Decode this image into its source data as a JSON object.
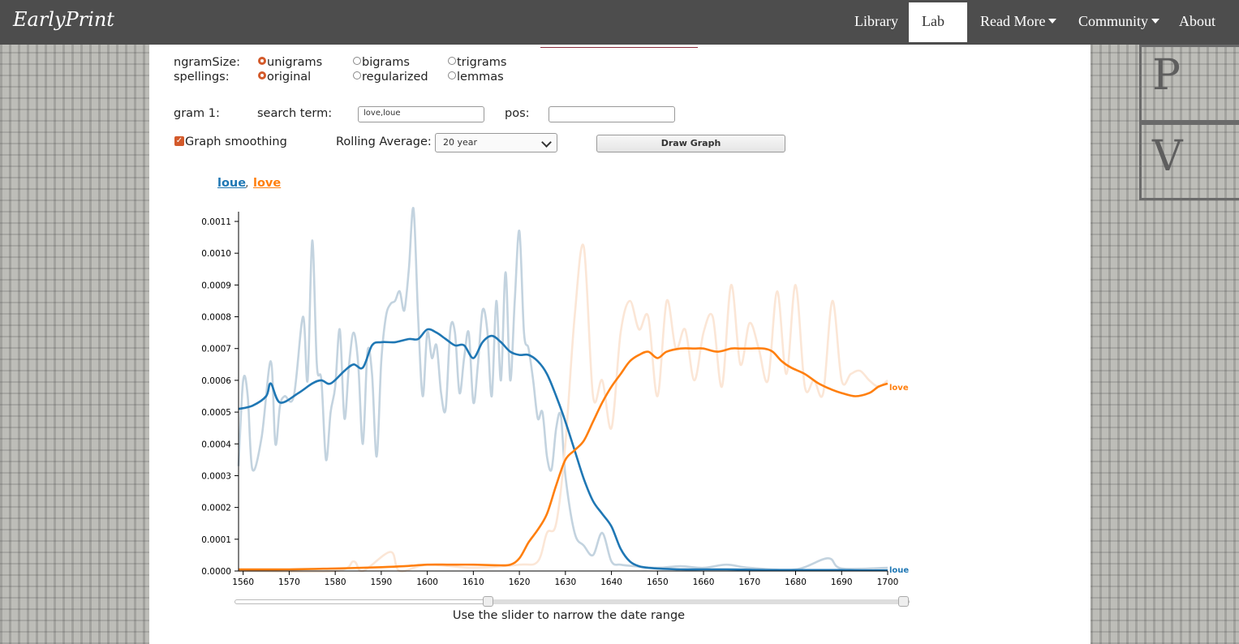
{
  "navbar": {
    "brand": "EarlyPrint",
    "items": [
      {
        "label": "Library",
        "dropdown": false,
        "active": false
      },
      {
        "label": "Lab",
        "dropdown": true,
        "active": true
      },
      {
        "label": "Read More",
        "dropdown": true,
        "active": false
      },
      {
        "label": "Community",
        "dropdown": true,
        "active": false
      },
      {
        "label": "About",
        "dropdown": false,
        "active": false
      }
    ]
  },
  "form": {
    "ngram_size_label": "ngramSize:",
    "ngram_options": [
      "unigrams",
      "bigrams",
      "trigrams"
    ],
    "ngram_selected": "unigrams",
    "spellings_label": "spellings:",
    "spelling_options": [
      "original",
      "regularized",
      "lemmas"
    ],
    "spelling_selected": "original",
    "gram_label": "gram 1:",
    "search_term_label": "search term:",
    "search_term_value": "love,loue",
    "pos_label": "pos:",
    "pos_value": "",
    "smoothing_label": "Graph smoothing",
    "smoothing_checked": true,
    "rolling_label": "Rolling Average:",
    "rolling_value": "20 year",
    "draw_button": "Draw Graph"
  },
  "legend": {
    "loue": "loue",
    "separator": ",",
    "love": "love"
  },
  "slider_caption": "Use the slider to narrow the date range",
  "colors": {
    "loue": "#1f77b4",
    "love": "#ff7f0e",
    "loue_raw": "#c3d3df",
    "love_raw": "#fbe6d6",
    "accent": "#d35a2b"
  },
  "chart_data": {
    "type": "line",
    "xlim": [
      1559,
      1700
    ],
    "ylim": [
      0,
      0.0011
    ],
    "x_ticks": [
      1560,
      1570,
      1580,
      1590,
      1600,
      1610,
      1620,
      1630,
      1640,
      1650,
      1660,
      1670,
      1680,
      1690,
      1700
    ],
    "y_ticks": [
      "0.0000",
      "0.0001",
      "0.0002",
      "0.0003",
      "0.0004",
      "0.0005",
      "0.0006",
      "0.0007",
      "0.0008",
      "0.0009",
      "0.0010",
      "0.0011"
    ],
    "grid": false,
    "series": [
      {
        "name": "loue",
        "kind": "smoothed",
        "x": [
          1559,
          1562,
          1565,
          1566,
          1568,
          1572,
          1575,
          1577,
          1579,
          1582,
          1584,
          1586,
          1588,
          1590,
          1593,
          1596,
          1598,
          1600,
          1602,
          1604,
          1606,
          1608,
          1610,
          1612,
          1614,
          1616,
          1618,
          1620,
          1622,
          1624,
          1626,
          1628,
          1630,
          1632,
          1634,
          1636,
          1638,
          1640,
          1642,
          1644,
          1646,
          1648,
          1650,
          1655,
          1660,
          1665,
          1670,
          1675,
          1680,
          1685,
          1690,
          1695,
          1700
        ],
        "y": [
          0.00051,
          0.00052,
          0.00055,
          0.00059,
          0.00053,
          0.00056,
          0.00059,
          0.0006,
          0.00059,
          0.00063,
          0.00065,
          0.00064,
          0.00071,
          0.00072,
          0.00072,
          0.00073,
          0.00073,
          0.00076,
          0.00075,
          0.00073,
          0.00071,
          0.00071,
          0.00067,
          0.00072,
          0.00074,
          0.00072,
          0.00069,
          0.00068,
          0.00068,
          0.00066,
          0.00062,
          0.00055,
          0.00047,
          0.00038,
          0.00029,
          0.00022,
          0.00018,
          0.00014,
          7e-05,
          3e-05,
          1.5e-05,
          1e-05,
          8e-06,
          5e-06,
          5e-06,
          5e-06,
          4e-06,
          3e-06,
          3e-06,
          3e-06,
          3e-06,
          2e-06,
          2e-06
        ]
      },
      {
        "name": "love",
        "kind": "smoothed",
        "x": [
          1559,
          1570,
          1580,
          1590,
          1595,
          1600,
          1605,
          1610,
          1615,
          1618,
          1620,
          1622,
          1624,
          1626,
          1628,
          1630,
          1632,
          1634,
          1636,
          1638,
          1640,
          1642,
          1644,
          1646,
          1648,
          1650,
          1652,
          1655,
          1658,
          1660,
          1663,
          1666,
          1668,
          1670,
          1673,
          1675,
          1677,
          1679,
          1682,
          1685,
          1688,
          1690,
          1693,
          1696,
          1698,
          1700
        ],
        "y": [
          5e-06,
          5e-06,
          8e-06,
          1.2e-05,
          1.5e-05,
          2e-05,
          2e-05,
          2e-05,
          1.8e-05,
          2e-05,
          4e-05,
          9e-05,
          0.00013,
          0.00018,
          0.00027,
          0.00035,
          0.00038,
          0.00041,
          0.00047,
          0.00053,
          0.00058,
          0.00062,
          0.00066,
          0.00068,
          0.00069,
          0.00067,
          0.00069,
          0.0007,
          0.0007,
          0.0007,
          0.00069,
          0.0007,
          0.0007,
          0.0007,
          0.0007,
          0.00069,
          0.00066,
          0.00064,
          0.00062,
          0.00059,
          0.00057,
          0.00056,
          0.00055,
          0.00056,
          0.00058,
          0.00059
        ]
      },
      {
        "name": "loue",
        "kind": "raw",
        "x": [
          1559,
          1560,
          1561,
          1562,
          1564,
          1566,
          1567,
          1568,
          1569,
          1571,
          1573,
          1574,
          1575,
          1576,
          1577,
          1578,
          1579,
          1580,
          1581,
          1582,
          1583,
          1584,
          1585,
          1586,
          1587,
          1588,
          1589,
          1590,
          1591,
          1592,
          1593,
          1594,
          1595,
          1596,
          1597,
          1598,
          1599,
          1600,
          1601,
          1602,
          1603,
          1604,
          1605,
          1606,
          1607,
          1608,
          1609,
          1610,
          1611,
          1612,
          1613,
          1614,
          1615,
          1616,
          1617,
          1618,
          1619,
          1620,
          1621,
          1622,
          1623,
          1624,
          1625,
          1626,
          1627,
          1628,
          1629,
          1630,
          1632,
          1634,
          1636,
          1638,
          1640,
          1642,
          1645,
          1650,
          1655,
          1660,
          1665,
          1670,
          1680,
          1687,
          1690,
          1700
        ],
        "y": [
          0.00033,
          0.0006,
          0.00055,
          0.00032,
          0.00042,
          0.00066,
          0.0004,
          0.00052,
          0.00055,
          0.00055,
          0.0008,
          0.0006,
          0.00104,
          0.00065,
          0.0006,
          0.00035,
          0.0005,
          0.00058,
          0.00076,
          0.00048,
          0.00065,
          0.00075,
          0.00065,
          0.0004,
          0.00069,
          0.00062,
          0.00036,
          0.00066,
          0.0008,
          0.00084,
          0.00085,
          0.00088,
          0.00082,
          0.00095,
          0.00114,
          0.0008,
          0.00055,
          0.00075,
          0.00067,
          0.00071,
          0.00056,
          0.00051,
          0.00076,
          0.00075,
          0.00056,
          0.00067,
          0.00075,
          0.00053,
          0.00065,
          0.00082,
          0.00076,
          0.00055,
          0.00085,
          0.0006,
          0.00094,
          0.0006,
          0.00085,
          0.00107,
          0.00075,
          0.0007,
          0.0006,
          0.00048,
          0.0005,
          0.00036,
          0.00032,
          0.00045,
          0.00049,
          0.0003,
          0.00012,
          8e-05,
          5e-05,
          0.00012,
          3e-05,
          2e-05,
          1.5e-05,
          1e-05,
          1.5e-05,
          1e-05,
          2e-05,
          1e-05,
          5e-06,
          4e-05,
          8e-06,
          1e-05
        ]
      },
      {
        "name": "love",
        "kind": "raw",
        "x": [
          1559,
          1580,
          1584,
          1586,
          1592,
          1594,
          1600,
          1610,
          1620,
          1624,
          1626,
          1628,
          1630,
          1632,
          1634,
          1636,
          1638,
          1640,
          1642,
          1644,
          1646,
          1648,
          1650,
          1652,
          1654,
          1656,
          1658,
          1660,
          1662,
          1664,
          1666,
          1668,
          1670,
          1672,
          1674,
          1676,
          1678,
          1680,
          1682,
          1684,
          1686,
          1688,
          1690,
          1692,
          1694,
          1696,
          1698,
          1700
        ],
        "y": [
          0.0,
          0.0,
          3e-05,
          0.0,
          6e-05,
          0.0,
          2e-05,
          1e-05,
          2e-05,
          3e-05,
          0.00012,
          0.00015,
          0.0004,
          0.0008,
          0.00102,
          0.00055,
          0.0006,
          0.00045,
          0.00075,
          0.00085,
          0.00076,
          0.0008,
          0.00055,
          0.00085,
          0.0007,
          0.00076,
          0.0006,
          0.00075,
          0.0008,
          0.00058,
          0.0009,
          0.00065,
          0.00078,
          0.0007,
          0.0006,
          0.00088,
          0.00062,
          0.0009,
          0.00058,
          0.0006,
          0.00056,
          0.00085,
          0.0006,
          0.00062,
          0.00063,
          0.0006,
          0.00058,
          0.0006
        ]
      }
    ],
    "end_labels": [
      "love",
      "loue"
    ]
  }
}
